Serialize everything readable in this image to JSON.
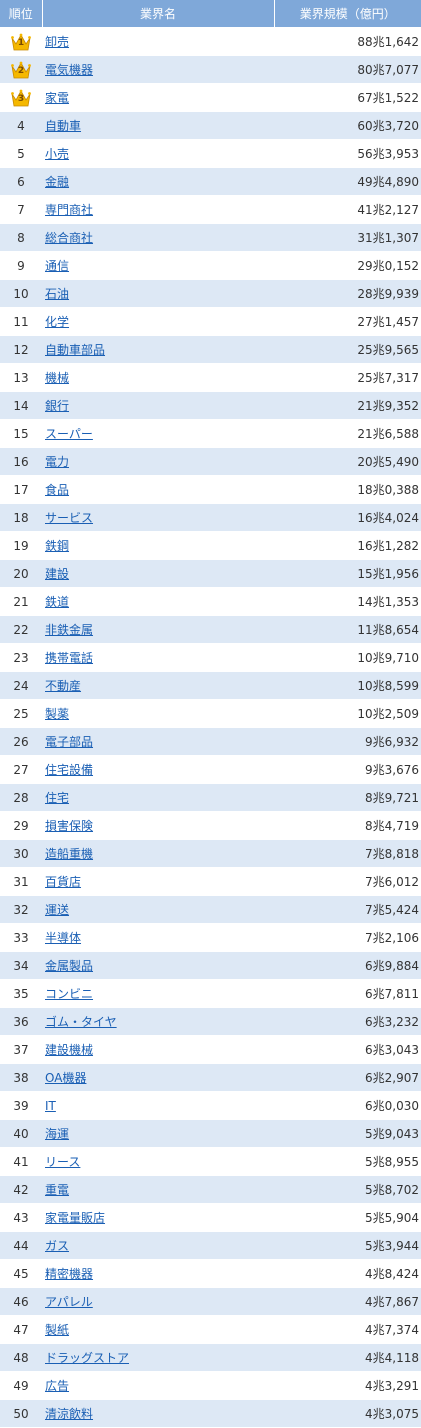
{
  "headers": {
    "rank": "順位",
    "industry": "業界名",
    "size": "業界規模（億円）"
  },
  "colors": {
    "header_bg": "#7fa8d9",
    "row_alt_bg": "#dde8f5",
    "link": "#1a5fb4",
    "crown_gold": "#f5b800"
  },
  "rows": [
    {
      "rank": "1",
      "name": "卸売",
      "size": "88兆1,642",
      "crown": "crown-icon"
    },
    {
      "rank": "2",
      "name": "電気機器",
      "size": "80兆7,077",
      "crown": "crown-icon"
    },
    {
      "rank": "3",
      "name": "家電",
      "size": "67兆1,522",
      "crown": "crown-icon"
    },
    {
      "rank": "4",
      "name": "自動車",
      "size": "60兆3,720"
    },
    {
      "rank": "5",
      "name": "小売",
      "size": "56兆3,953"
    },
    {
      "rank": "6",
      "name": "金融",
      "size": "49兆4,890"
    },
    {
      "rank": "7",
      "name": "専門商社",
      "size": "41兆2,127"
    },
    {
      "rank": "8",
      "name": "総合商社",
      "size": "31兆1,307"
    },
    {
      "rank": "9",
      "name": "通信",
      "size": "29兆0,152"
    },
    {
      "rank": "10",
      "name": "石油",
      "size": "28兆9,939"
    },
    {
      "rank": "11",
      "name": "化学",
      "size": "27兆1,457"
    },
    {
      "rank": "12",
      "name": "自動車部品",
      "size": "25兆9,565"
    },
    {
      "rank": "13",
      "name": "機械",
      "size": "25兆7,317"
    },
    {
      "rank": "14",
      "name": "銀行",
      "size": "21兆9,352"
    },
    {
      "rank": "15",
      "name": "スーパー",
      "size": "21兆6,588"
    },
    {
      "rank": "16",
      "name": "電力",
      "size": "20兆5,490"
    },
    {
      "rank": "17",
      "name": "食品",
      "size": "18兆0,388"
    },
    {
      "rank": "18",
      "name": "サービス",
      "size": "16兆4,024"
    },
    {
      "rank": "19",
      "name": "鉄鋼",
      "size": "16兆1,282"
    },
    {
      "rank": "20",
      "name": "建設",
      "size": "15兆1,956"
    },
    {
      "rank": "21",
      "name": "鉄道",
      "size": "14兆1,353"
    },
    {
      "rank": "22",
      "name": "非鉄金属",
      "size": "11兆8,654"
    },
    {
      "rank": "23",
      "name": "携帯電話",
      "size": "10兆9,710"
    },
    {
      "rank": "24",
      "name": "不動産",
      "size": "10兆8,599"
    },
    {
      "rank": "25",
      "name": "製薬",
      "size": "10兆2,509"
    },
    {
      "rank": "26",
      "name": "電子部品",
      "size": "9兆6,932"
    },
    {
      "rank": "27",
      "name": "住宅設備",
      "size": "9兆3,676"
    },
    {
      "rank": "28",
      "name": "住宅",
      "size": "8兆9,721"
    },
    {
      "rank": "29",
      "name": "損害保険",
      "size": "8兆4,719"
    },
    {
      "rank": "30",
      "name": "造船重機",
      "size": "7兆8,818"
    },
    {
      "rank": "31",
      "name": "百貨店",
      "size": "7兆6,012"
    },
    {
      "rank": "32",
      "name": "運送",
      "size": "7兆5,424"
    },
    {
      "rank": "33",
      "name": "半導体",
      "size": "7兆2,106"
    },
    {
      "rank": "34",
      "name": "金属製品",
      "size": "6兆9,884"
    },
    {
      "rank": "35",
      "name": "コンビニ",
      "size": "6兆7,811"
    },
    {
      "rank": "36",
      "name": "ゴム・タイヤ",
      "size": "6兆3,232"
    },
    {
      "rank": "37",
      "name": "建設機械",
      "size": "6兆3,043"
    },
    {
      "rank": "38",
      "name": "OA機器",
      "size": "6兆2,907"
    },
    {
      "rank": "39",
      "name": "IT",
      "size": "6兆0,030"
    },
    {
      "rank": "40",
      "name": "海運",
      "size": "5兆9,043"
    },
    {
      "rank": "41",
      "name": "リース",
      "size": "5兆8,955"
    },
    {
      "rank": "42",
      "name": "重電",
      "size": "5兆8,702"
    },
    {
      "rank": "43",
      "name": "家電量販店",
      "size": "5兆5,904"
    },
    {
      "rank": "44",
      "name": "ガス",
      "size": "5兆3,944"
    },
    {
      "rank": "45",
      "name": "精密機器",
      "size": "4兆8,424"
    },
    {
      "rank": "46",
      "name": "アパレル",
      "size": "4兆7,867"
    },
    {
      "rank": "47",
      "name": "製紙",
      "size": "4兆7,374"
    },
    {
      "rank": "48",
      "name": "ドラッグストア",
      "size": "4兆4,118"
    },
    {
      "rank": "49",
      "name": "広告",
      "size": "4兆3,291"
    },
    {
      "rank": "50",
      "name": "清涼飲料",
      "size": "4兆3,075"
    }
  ]
}
